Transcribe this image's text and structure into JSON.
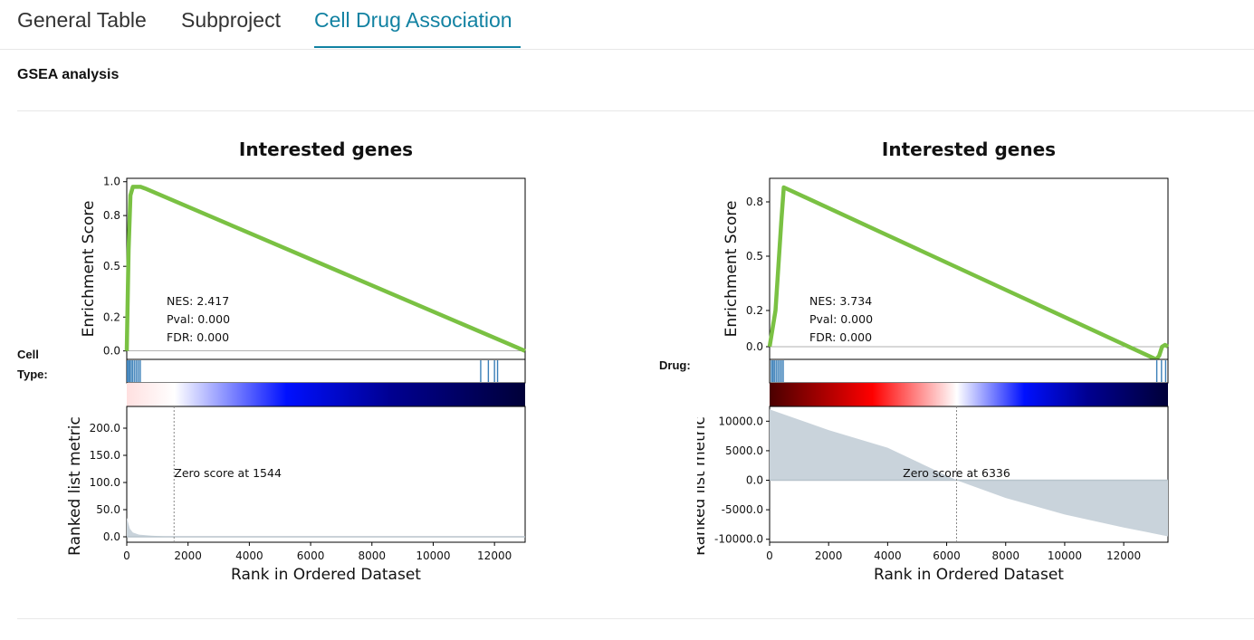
{
  "tabs": [
    {
      "label": "General Table",
      "active": false
    },
    {
      "label": "Subproject",
      "active": false
    },
    {
      "label": "Cell Drug Association",
      "active": true
    }
  ],
  "section_title": "GSEA analysis",
  "accent_color": "#1282a2",
  "panels": [
    {
      "side_label_line1": "Cell",
      "side_label_line2": "Type:",
      "chart_data": {
        "type": "line",
        "title": "Interested genes",
        "xlabel": "Rank in Ordered Dataset",
        "top_ylabel": "Enrichment Score",
        "bottom_ylabel": "Ranked list metric",
        "xlim": [
          0,
          13000
        ],
        "xticks": [
          0,
          2000,
          4000,
          6000,
          8000,
          10000,
          12000
        ],
        "es_ylim": [
          -0.05,
          1.02
        ],
        "es_yticks": [
          0.0,
          0.2,
          0.5,
          0.8,
          1.0
        ],
        "es_ytick_labels": [
          "0.0",
          "0.2",
          "0.5",
          "0.8",
          "1.0"
        ],
        "es_x": [
          0,
          60,
          120,
          200,
          300,
          450,
          600,
          13000
        ],
        "es_y": [
          0.0,
          0.6,
          0.92,
          0.97,
          0.97,
          0.97,
          0.96,
          0.0
        ],
        "stats": {
          "nes": "NES: 2.417",
          "pval": "Pval: 0.000",
          "fdr": "FDR: 0.000"
        },
        "hits": [
          20,
          60,
          100,
          150,
          200,
          260,
          320,
          380,
          440,
          11550,
          11800,
          12000,
          12100
        ],
        "metric_ylim": [
          -10,
          240
        ],
        "metric_yticks": [
          0,
          50,
          100,
          150,
          200
        ],
        "metric_ytick_labels": [
          "0.0",
          "50.0",
          "100.0",
          "150.0",
          "200.0"
        ],
        "metric_x": [
          0,
          50,
          100,
          200,
          400,
          800,
          1544,
          3000,
          13000
        ],
        "metric_y": [
          35,
          25,
          15,
          8,
          4,
          2,
          0,
          0,
          0
        ],
        "zero_cross_x": 1544,
        "zero_label": "Zero score at 1544",
        "gradient_zero_fraction": 0.12,
        "line_color": "#7ac143",
        "fill_color": "#c9d3db"
      }
    },
    {
      "side_label_line1": "Drug:",
      "side_label_line2": "",
      "chart_data": {
        "type": "line",
        "title": "Interested genes",
        "xlabel": "Rank in Ordered Dataset",
        "top_ylabel": "Enrichment Score",
        "bottom_ylabel": "Ranked list metric",
        "xlim": [
          0,
          13500
        ],
        "xticks": [
          0,
          2000,
          4000,
          6000,
          8000,
          10000,
          12000
        ],
        "es_ylim": [
          -0.07,
          0.93
        ],
        "es_yticks": [
          0.0,
          0.2,
          0.5,
          0.8
        ],
        "es_ytick_labels": [
          "0.0",
          "0.2",
          "0.5",
          "0.8"
        ],
        "es_x": [
          0,
          100,
          200,
          300,
          400,
          480,
          13100,
          13200,
          13300,
          13400,
          13500
        ],
        "es_y": [
          0.0,
          0.1,
          0.2,
          0.45,
          0.7,
          0.88,
          -0.07,
          -0.05,
          0.0,
          0.01,
          0.0
        ],
        "stats": {
          "nes": "NES: 3.734",
          "pval": "Pval: 0.000",
          "fdr": "FDR: 0.000"
        },
        "hits": [
          60,
          110,
          160,
          220,
          280,
          340,
          400,
          460,
          13120,
          13280,
          13420
        ],
        "metric_ylim": [
          -10500,
          12500
        ],
        "metric_yticks": [
          -10000,
          -5000,
          0,
          5000,
          10000
        ],
        "metric_ytick_labels": [
          "-10000.0",
          "-5000.0",
          "0.0",
          "5000.0",
          "10000.0"
        ],
        "metric_x": [
          0,
          2000,
          4000,
          6336,
          8000,
          10000,
          12000,
          13500
        ],
        "metric_y": [
          12000,
          8500,
          5500,
          0,
          -3000,
          -5800,
          -8000,
          -9500
        ],
        "zero_cross_x": 6336,
        "zero_label": "Zero score at 6336",
        "gradient_zero_fraction": 0.47,
        "line_color": "#7ac143",
        "fill_color": "#c9d3db"
      }
    }
  ]
}
